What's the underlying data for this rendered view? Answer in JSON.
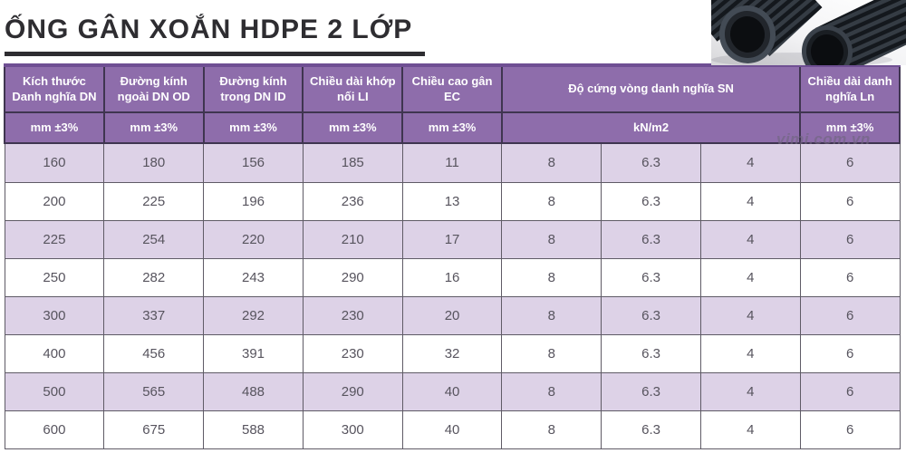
{
  "title": "ỐNG GÂN XOẮN HDPE 2 LỚP",
  "watermark": "vimi.com.vn",
  "photo": {
    "description": "black corrugated HDPE pipes"
  },
  "colors": {
    "header_bg": "#8e6dab",
    "header_text": "#ffffff",
    "row_alt_bg": "#ddd2e7",
    "row_bg": "#ffffff",
    "border_dark": "#3f3550",
    "cell_border": "#5f5b66",
    "cell_text": "#57545e",
    "title_color": "#2e2d31",
    "topbar": "#6f4f93"
  },
  "table": {
    "columns": [
      {
        "label": "Kích thước Danh nghĩa DN",
        "unit": "mm ±3%",
        "span": 1
      },
      {
        "label": "Đường kính ngoài DN OD",
        "unit": "mm ±3%",
        "span": 1
      },
      {
        "label": "Đường kính trong DN ID",
        "unit": "mm ±3%",
        "span": 1
      },
      {
        "label": "Chiều dài khớp nối LI",
        "unit": "mm ±3%",
        "span": 1
      },
      {
        "label": "Chiều cao gân EC",
        "unit": "mm ±3%",
        "span": 1
      },
      {
        "label": "Độ cứng vòng danh nghĩa SN",
        "unit": "kN/m2",
        "span": 3
      },
      {
        "label": "Chiều dài danh nghĩa Ln",
        "unit": "mm ±3%",
        "span": 1
      }
    ],
    "rows": [
      [
        "160",
        "180",
        "156",
        "185",
        "11",
        "8",
        "6.3",
        "4",
        "6"
      ],
      [
        "200",
        "225",
        "196",
        "236",
        "13",
        "8",
        "6.3",
        "4",
        "6"
      ],
      [
        "225",
        "254",
        "220",
        "210",
        "17",
        "8",
        "6.3",
        "4",
        "6"
      ],
      [
        "250",
        "282",
        "243",
        "290",
        "16",
        "8",
        "6.3",
        "4",
        "6"
      ],
      [
        "300",
        "337",
        "292",
        "230",
        "20",
        "8",
        "6.3",
        "4",
        "6"
      ],
      [
        "400",
        "456",
        "391",
        "230",
        "32",
        "8",
        "6.3",
        "4",
        "6"
      ],
      [
        "500",
        "565",
        "488",
        "290",
        "40",
        "8",
        "6.3",
        "4",
        "6"
      ],
      [
        "600",
        "675",
        "588",
        "300",
        "40",
        "8",
        "6.3",
        "4",
        "6"
      ]
    ]
  }
}
